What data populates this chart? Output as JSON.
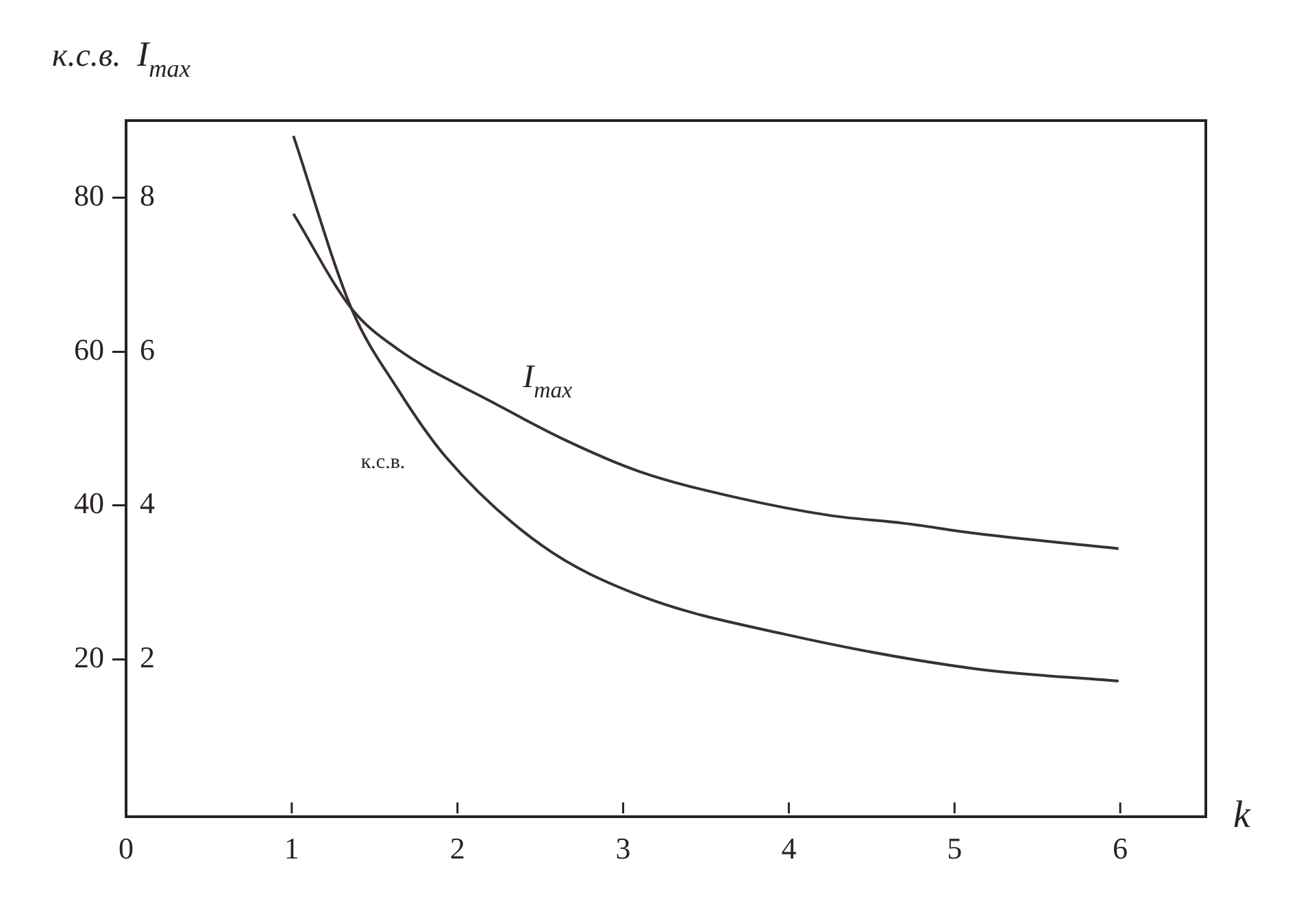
{
  "chart_data": {
    "type": "line",
    "xlabel": "k",
    "ylabel": "к.с.в.",
    "y2label": "I$_{max}$",
    "xlim": [
      0,
      6.5
    ],
    "xticks": [
      0,
      1,
      2,
      3,
      4,
      5,
      6
    ],
    "ylim": [
      0,
      90
    ],
    "yticks": [
      20,
      40,
      60,
      80
    ],
    "y2lim": [
      0,
      9
    ],
    "y2ticks": [
      2,
      4,
      6,
      8
    ],
    "grid": false,
    "legend": false,
    "marker": "none",
    "line_style": "solid",
    "series": [
      {
        "name": "к.с.в.",
        "color": "#3a3030",
        "axis": "y",
        "x": [
          1.01,
          1.36,
          1.64,
          1.93,
          2.51,
          3.1,
          3.97,
          5.12,
          5.99
        ],
        "values": [
          88,
          65.6,
          55.1,
          46.3,
          34.8,
          28.3,
          23.3,
          18.8,
          17.2
        ]
      },
      {
        "name": "I$_{max}$",
        "color": "#3a3030",
        "axis": "y2",
        "x": [
          1.01,
          1.36,
          1.64,
          2.23,
          2.66,
          3.1,
          3.67,
          4.25,
          4.69,
          5.12,
          5.99
        ],
        "values": [
          7.79,
          6.56,
          6.03,
          5.32,
          4.84,
          4.44,
          4.11,
          3.87,
          3.77,
          3.64,
          3.44
        ]
      }
    ]
  }
}
